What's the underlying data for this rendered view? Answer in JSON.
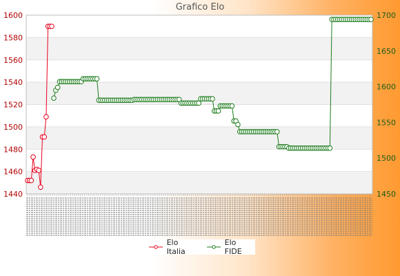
{
  "chart_data": {
    "type": "line",
    "title": "Grafico Elo",
    "legend": "bottom-center",
    "grid": true,
    "series": [
      {
        "name": "Elo Italia",
        "axis": "left",
        "color": "#e8001c",
        "values": [
          1452,
          1452,
          1452,
          1473,
          1461,
          1462,
          1461,
          1446,
          1491,
          1491,
          1509,
          1590,
          1590,
          1590
        ]
      },
      {
        "name": "Elo FIDE",
        "axis": "right",
        "color": "#1a7a1a",
        "values": [
          1584,
          1595,
          1599,
          1607,
          1607,
          1607,
          1607,
          1607,
          1607,
          1607,
          1607,
          1607,
          1607,
          1607,
          1607,
          1611,
          1611,
          1611,
          1611,
          1611,
          1611,
          1611,
          1611,
          1581,
          1581,
          1581,
          1581,
          1581,
          1581,
          1581,
          1581,
          1581,
          1581,
          1581,
          1581,
          1581,
          1581,
          1581,
          1581,
          1581,
          1581,
          1582,
          1582,
          1582,
          1582,
          1582,
          1582,
          1582,
          1582,
          1582,
          1582,
          1582,
          1582,
          1582,
          1582,
          1582,
          1582,
          1582,
          1582,
          1582,
          1582,
          1582,
          1582,
          1582,
          1582,
          1577,
          1577,
          1577,
          1577,
          1577,
          1577,
          1577,
          1577,
          1577,
          1577,
          1583,
          1583,
          1583,
          1583,
          1583,
          1583,
          1583,
          1566,
          1566,
          1566,
          1573,
          1573,
          1573,
          1573,
          1573,
          1573,
          1573,
          1552,
          1552,
          1547,
          1537,
          1537,
          1537,
          1537,
          1537,
          1537,
          1537,
          1537,
          1537,
          1537,
          1537,
          1537,
          1537,
          1537,
          1537,
          1537,
          1537,
          1537,
          1537,
          1537,
          1516,
          1516,
          1516,
          1516,
          1516,
          1514,
          1514,
          1514,
          1514,
          1514,
          1514,
          1514,
          1514,
          1514,
          1514,
          1514,
          1514,
          1514,
          1514,
          1514,
          1514,
          1514,
          1514,
          1514,
          1514,
          1514,
          1514,
          1694,
          1694,
          1694,
          1694,
          1694,
          1694,
          1694,
          1694,
          1694,
          1694,
          1694,
          1694,
          1694,
          1694,
          1694,
          1694,
          1694,
          1694,
          1694,
          1694,
          1694
        ]
      }
    ],
    "y_left": {
      "ylim": [
        1440,
        1600
      ],
      "ticks": [
        "1440",
        "1460",
        "1480",
        "1500",
        "1520",
        "1540",
        "1560",
        "1580",
        "1600"
      ]
    },
    "y_right": {
      "ylim": [
        1450,
        1700
      ],
      "ticks": [
        "1450",
        "1500",
        "1550",
        "1600",
        "1650",
        "1700"
      ]
    },
    "x_tick_count": 175
  }
}
